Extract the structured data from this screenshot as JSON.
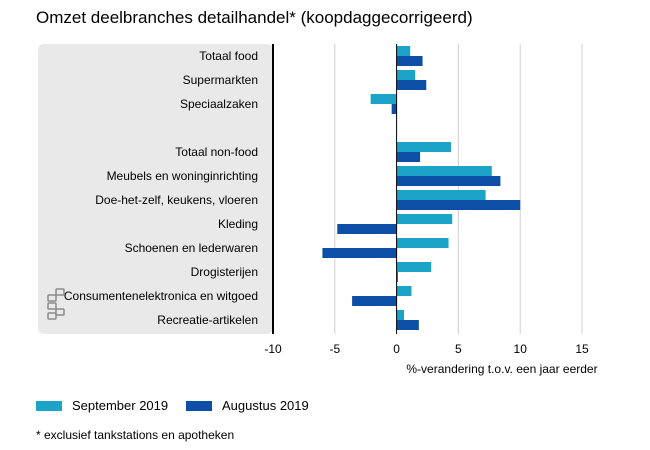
{
  "title": "Omzet deelbranches detailhandel* (koopdaggecorrigeerd)",
  "footnote": "* exclusief tankstations en apotheken",
  "colors": {
    "sep": "#1ba3c8",
    "aug": "#0d4ea6",
    "panel": "#e9e9e9",
    "axis": "#000000"
  },
  "chart_data": {
    "type": "bar",
    "orientation": "horizontal",
    "xlabel": "%-verandering t.o.v. een jaar eerder",
    "xlim": [
      -10,
      15
    ],
    "xticks": [
      -10,
      -5,
      0,
      5,
      10,
      15
    ],
    "categories": [
      "Totaal food",
      "Supermarkten",
      "Speciaalzaken",
      "",
      "Totaal non-food",
      "Meubels en woninginrichting",
      "Doe-het-zelf, keukens, vloeren",
      "Kleding",
      "Schoenen en lederwaren",
      "Drogisterijen",
      "Consumentenelektronica en witgoed",
      "Recreatie-artikelen"
    ],
    "series": [
      {
        "name": "September 2019",
        "values": [
          1.1,
          1.5,
          -2.1,
          null,
          4.4,
          7.7,
          7.2,
          4.5,
          4.2,
          2.8,
          1.2,
          0.6
        ]
      },
      {
        "name": "Augustus 2019",
        "values": [
          2.1,
          2.4,
          -0.4,
          null,
          1.9,
          8.4,
          10.0,
          -4.8,
          -6.0,
          0.1,
          -3.6,
          1.8
        ]
      }
    ],
    "legend_position": "bottom"
  }
}
